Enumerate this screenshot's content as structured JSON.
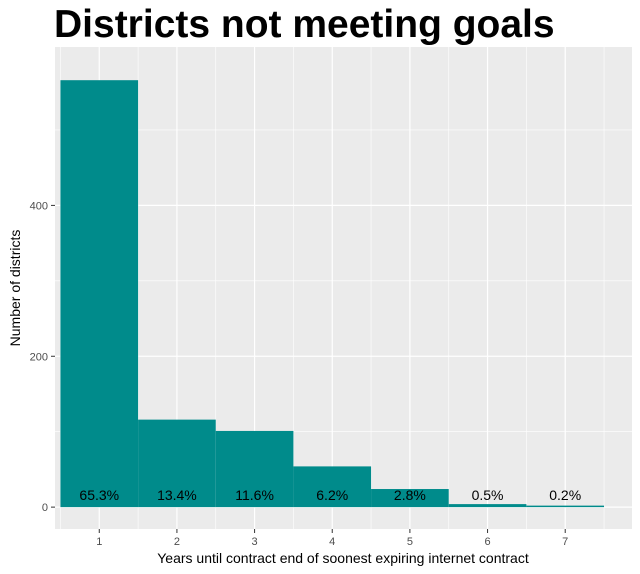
{
  "chart_data": {
    "type": "bar",
    "title": "Districts not meeting goals",
    "xlabel": "Years until contract end of soonest expiring internet contract",
    "ylabel": "Number of districts",
    "categories": [
      "1",
      "2",
      "3",
      "4",
      "5",
      "6",
      "7"
    ],
    "values": [
      566,
      116,
      101,
      54,
      24,
      4,
      2
    ],
    "bar_labels": [
      "65.3%",
      "13.4%",
      "11.6%",
      "6.2%",
      "2.8%",
      "0.5%",
      "0.2%"
    ],
    "y_ticks": [
      0,
      200,
      400
    ],
    "ylim": [
      -29,
      610
    ],
    "xlim": [
      0.43,
      7.86
    ],
    "grid": true,
    "bar_color": "#008b8b",
    "panel_background": "#ebebeb",
    "grid_color": "#ffffff"
  }
}
